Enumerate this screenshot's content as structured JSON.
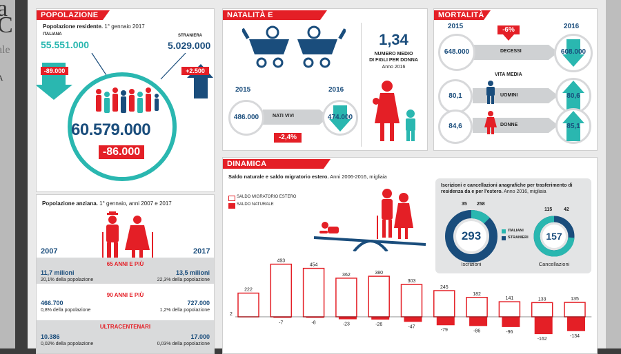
{
  "background_edges": {
    "left_glyphs": [
      "a",
      "C",
      "ale",
      "A"
    ]
  },
  "popolazione": {
    "title": "POPOLAZIONE",
    "subtitle_bold": "Popolazione residente.",
    "subtitle_rest": " 1° gennaio 2017",
    "italiana_label": "ITALIANA",
    "italiana_value": "55.551.000",
    "italiana_change": "-89.000",
    "straniera_label": "STRANIERA",
    "straniera_value": "5.029.000",
    "straniera_change": "+2.500",
    "total": "60.579.000",
    "total_change": "-86.000"
  },
  "anziana": {
    "subtitle_bold": "Popolazione anziana.",
    "subtitle_rest": " 1° gennaio, anni 2007 e 2017",
    "year_a": "2007",
    "year_b": "2017",
    "rows": [
      {
        "label": "65 ANNI E PIÙ",
        "a_value": "11,7 milioni",
        "a_note": "20,1% della popolazione",
        "b_value": "13,5 milioni",
        "b_note": "22,3% della popolazione"
      },
      {
        "label": "90 ANNI E PIÙ",
        "a_value": "466.700",
        "a_note": "0,8% della popolazione",
        "b_value": "727.000",
        "b_note": "1,2% della popolazione"
      },
      {
        "label": "ULTRACENTENARI",
        "a_value": "10.386",
        "a_note": "0,02% della popolazione",
        "b_value": "17.000",
        "b_note": "0,03% della popolazione"
      }
    ]
  },
  "natalita": {
    "title": "NATALITÀ E FECONDITÀ",
    "fertility_value": "1,34",
    "fertility_label_1": "NUMERO MEDIO",
    "fertility_label_2": "DI FIGLI PER DONNA",
    "fertility_year": "Anno 2016",
    "year_a": "2015",
    "year_b": "2016",
    "births_a": "486.000",
    "births_b": "474.000",
    "births_label": "NATI VIVI",
    "births_change": "-2,4%"
  },
  "mortalita": {
    "title": "MORTALITÀ",
    "year_a": "2015",
    "year_b": "2016",
    "deaths_change": "-6%",
    "deaths_a": "648.000",
    "deaths_label": "DECESSI",
    "deaths_b": "608.000",
    "life_label": "VITA MEDIA",
    "men_a": "80,1",
    "men_label": "UOMINI",
    "men_b": "80,6",
    "women_a": "84,6",
    "women_label": "DONNE",
    "women_b": "85,1"
  },
  "dinamica": {
    "title": "DINAMICA DEMOGRAFICA",
    "subtitle_bold": "Saldo naturale e saldo migratorio estero.",
    "subtitle_rest": " Anni 2006-2016, migliaia",
    "legend_migratorio": "SALDO MIGRATORIO ESTERO",
    "legend_naturale": "SALDO NATURALE",
    "iscr_title_bold": "Iscrizioni e cancellazioni anagrafiche per trasferimento di residenza da e per l'estero.",
    "iscr_title_rest": " Anno 2016, migliaia",
    "iscrizioni_label": "Iscrizioni",
    "iscrizioni_total": "293",
    "iscrizioni_italiani": "35",
    "iscrizioni_stranieri": "258",
    "cancellazioni_label": "Cancellazioni",
    "cancellazioni_total": "157",
    "cancellazioni_italiani": "115",
    "cancellazioni_stranieri": "42",
    "legend_italiani": "ITALIANI",
    "legend_stranieri": "STRANIERI"
  },
  "colors": {
    "red": "#e41f26",
    "teal": "#2ab7b0",
    "navy": "#1a4d7c",
    "blue": "#3a7fb8",
    "gray": "#cfd1d3"
  },
  "chart_data": {
    "type": "bar",
    "title": "Saldo naturale e saldo migratorio estero.",
    "series": [
      {
        "name": "SALDO MIGRATORIO ESTERO",
        "values": [
          222,
          493,
          454,
          362,
          380,
          303,
          245,
          182,
          141,
          133,
          135
        ]
      },
      {
        "name": "SALDO NATURALE",
        "values": [
          2,
          -7,
          -8,
          -23,
          -26,
          -47,
          -79,
          -86,
          -96,
          -162,
          -134
        ]
      }
    ],
    "ylim": [
      -170,
      500
    ]
  }
}
